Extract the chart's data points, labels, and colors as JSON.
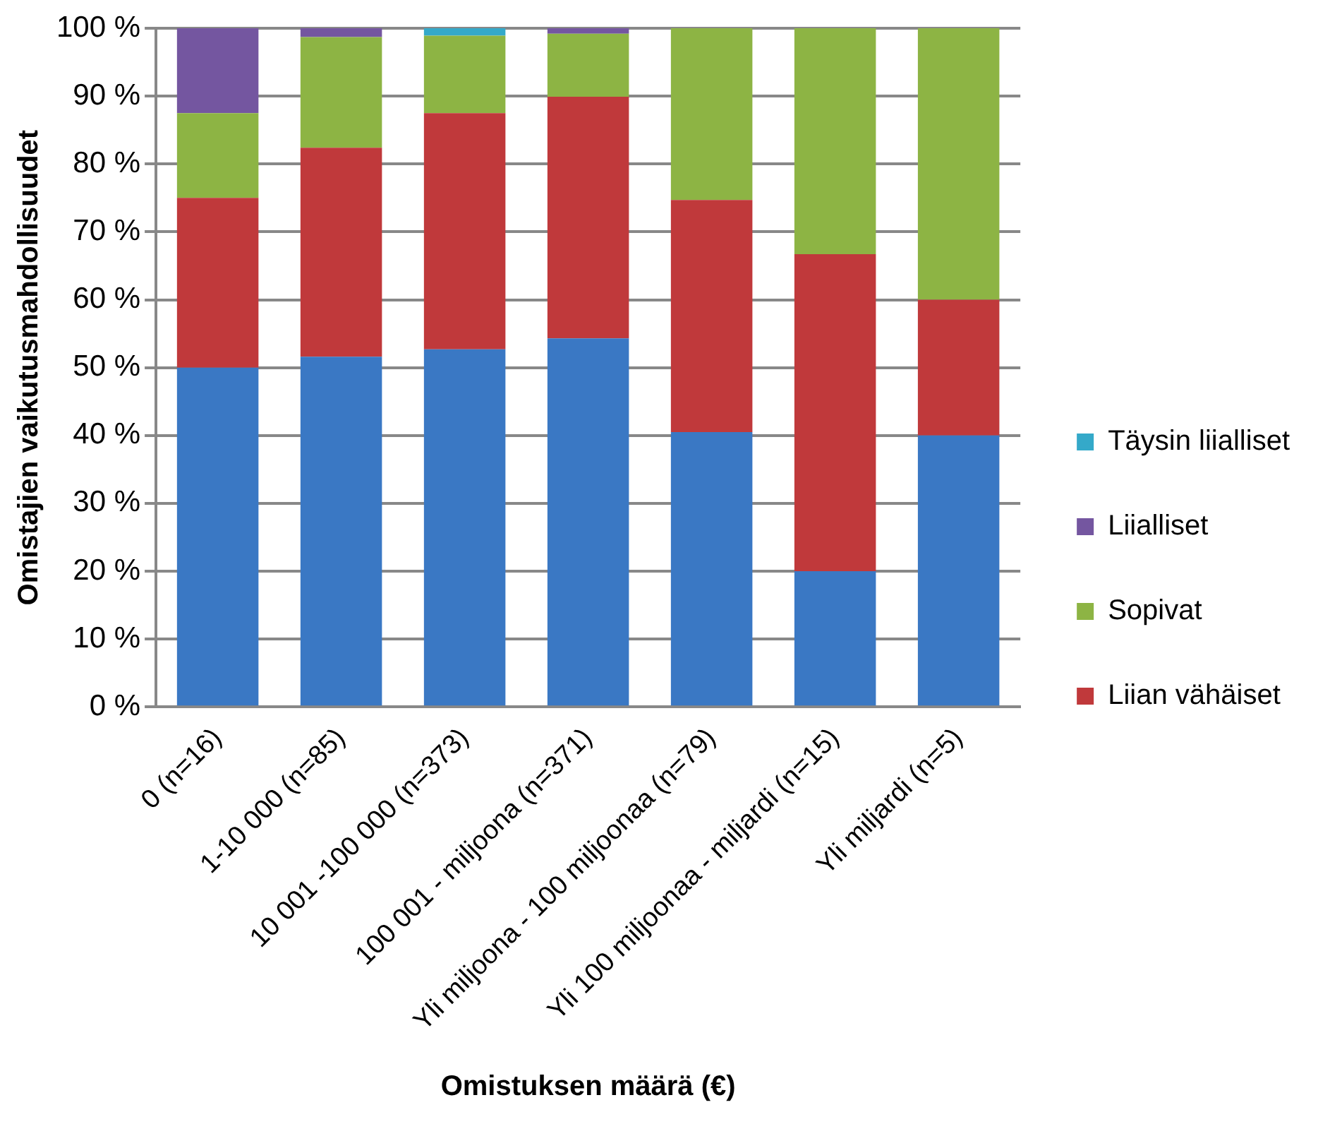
{
  "chart_data": {
    "type": "bar",
    "stacked": true,
    "xlabel": "Omistuksen määrä (€)",
    "ylabel": "Omistajien vaikutusmahdollisuudet",
    "categories": [
      "0 (n=16)",
      "1-10 000 (n=85)",
      "10 001 -100 000 (n=373)",
      "100 001 - miljoona (n=371)",
      "Yli miljoona - 100 miljoonaa (n=79)",
      "Yli 100 miljoonaa - miljardi (n=15)",
      "Yli miljardi (n=5)"
    ],
    "series": [
      {
        "color": "#3a78c4",
        "values": [
          50,
          51.6,
          52.7,
          54.3,
          40.5,
          20,
          40
        ]
      },
      {
        "name": "Liian vähäiset",
        "color": "#c0393b",
        "values": [
          25,
          30.8,
          34.8,
          35.6,
          34.2,
          46.7,
          20
        ]
      },
      {
        "name": "Sopivat",
        "color": "#8db444",
        "values": [
          12.5,
          16.3,
          11.4,
          9.3,
          25.3,
          33.3,
          40
        ]
      },
      {
        "name": "Liialliset",
        "color": "#7456a0",
        "values": [
          12.5,
          1.3,
          0,
          0.8,
          0,
          0,
          0
        ]
      },
      {
        "name": "Täysin liialliset",
        "color": "#34a9c9",
        "values": [
          0,
          0,
          1.1,
          0,
          0,
          0,
          0
        ]
      }
    ],
    "ylim": [
      0,
      100
    ],
    "yticks": [
      {
        "value": 0,
        "label": "0 %"
      },
      {
        "value": 10,
        "label": "10 %"
      },
      {
        "value": 20,
        "label": "20 %"
      },
      {
        "value": 30,
        "label": "30 %"
      },
      {
        "value": 40,
        "label": "40 %"
      },
      {
        "value": 50,
        "label": "50 %"
      },
      {
        "value": 60,
        "label": "60 %"
      },
      {
        "value": 70,
        "label": "70 %"
      },
      {
        "value": 80,
        "label": "80 %"
      },
      {
        "value": 90,
        "label": "90 %"
      },
      {
        "value": 100,
        "label": "100 %"
      }
    ],
    "grid": "y",
    "legend": "right"
  }
}
